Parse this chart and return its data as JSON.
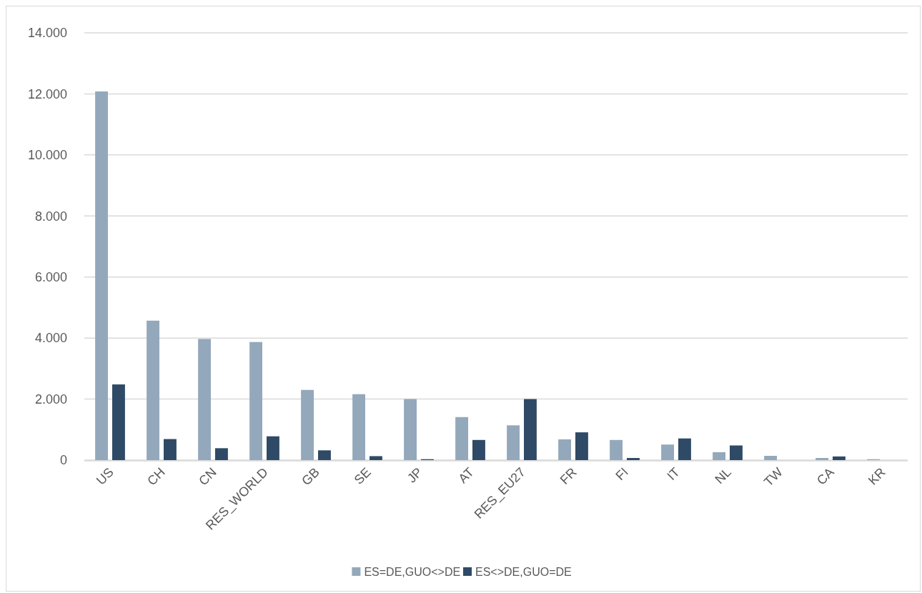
{
  "chart_data": {
    "type": "bar",
    "categories": [
      "US",
      "CH",
      "CN",
      "RES_WORLD",
      "GB",
      "SE",
      "JP",
      "AT",
      "RES_EU27",
      "FR",
      "FI",
      "IT",
      "NL",
      "TW",
      "CA",
      "KR"
    ],
    "series": [
      {
        "name": "ES=DE,GUO<>DE",
        "color": "#94a8bb",
        "values": [
          12080,
          4570,
          3970,
          3870,
          2300,
          2160,
          2000,
          1410,
          1140,
          680,
          660,
          510,
          260,
          140,
          70,
          30
        ]
      },
      {
        "name": "ES<>DE,GUO=DE",
        "color": "#2e4a66",
        "values": [
          2480,
          690,
          390,
          780,
          320,
          130,
          30,
          660,
          2000,
          910,
          70,
          710,
          480,
          null,
          120,
          null
        ]
      }
    ],
    "ylim": [
      0,
      14000
    ],
    "yticks": [
      {
        "value": 0,
        "label": "0"
      },
      {
        "value": 2000,
        "label": "2.000"
      },
      {
        "value": 4000,
        "label": "4.000"
      },
      {
        "value": 6000,
        "label": "6.000"
      },
      {
        "value": 8000,
        "label": "8.000"
      },
      {
        "value": 10000,
        "label": "10.000"
      },
      {
        "value": 12000,
        "label": "12.000"
      },
      {
        "value": 14000,
        "label": "14.000"
      }
    ],
    "grid": "y",
    "legend": "bottom"
  }
}
